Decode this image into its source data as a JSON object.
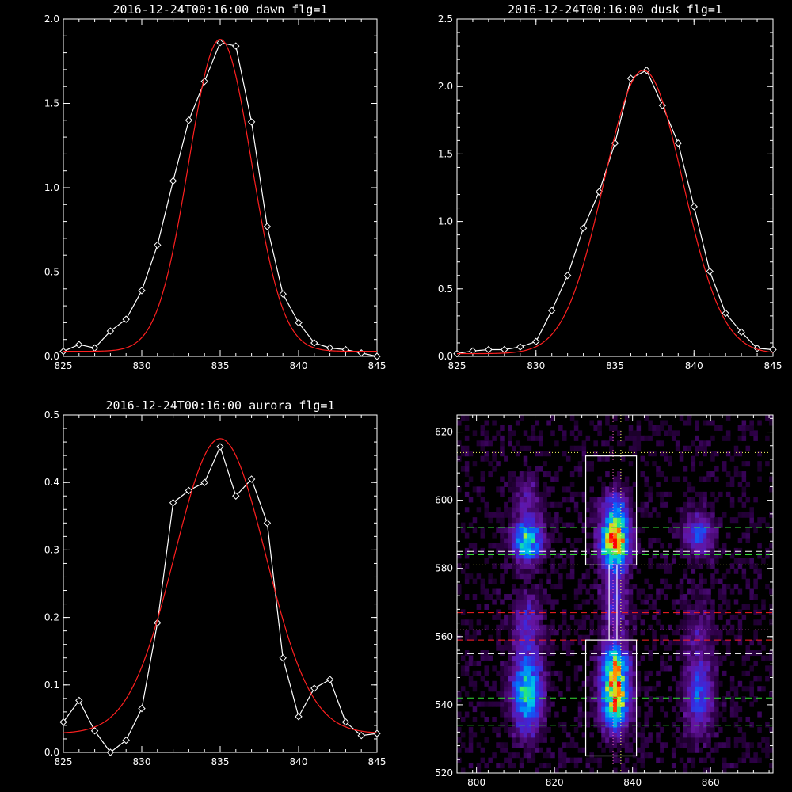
{
  "chart_data": [
    {
      "type": "line",
      "title": "2016-12-24T00:16:00 dawn flg=1",
      "xlim": [
        825,
        845
      ],
      "ylim": [
        0,
        2.0
      ],
      "xticks": [
        "825",
        "830",
        "835",
        "840",
        "845"
      ],
      "xtick_values": [
        825,
        830,
        835,
        840,
        845
      ],
      "yticks": [
        "0.0",
        "0.5",
        "1.0",
        "1.5",
        "2.0"
      ],
      "ytick_values": [
        0,
        0.5,
        1.0,
        1.5,
        2.0
      ],
      "series": [
        {
          "color": "#ffffff",
          "marker": "diamond",
          "x": [
            825,
            826,
            827,
            828,
            829,
            830,
            831,
            832,
            833,
            834,
            835,
            836,
            837,
            838,
            839,
            840,
            841,
            842,
            843,
            844,
            845
          ],
          "y": [
            0.03,
            0.07,
            0.05,
            0.15,
            0.22,
            0.39,
            0.66,
            1.04,
            1.4,
            1.63,
            1.86,
            1.84,
            1.39,
            0.77,
            0.37,
            0.2,
            0.08,
            0.05,
            0.04,
            0.02,
            0.0
          ]
        },
        {
          "color": "#ff2020",
          "marker": "none",
          "model": "gaussian",
          "peak": 1.85,
          "center": 835.0,
          "sigma": 2.0,
          "offset": 0.03
        }
      ]
    },
    {
      "type": "line",
      "title": "2016-12-24T00:16:00 dusk flg=1",
      "xlim": [
        825,
        845
      ],
      "ylim": [
        0,
        2.5
      ],
      "xticks": [
        "825",
        "830",
        "835",
        "840",
        "845"
      ],
      "xtick_values": [
        825,
        830,
        835,
        840,
        845
      ],
      "yticks": [
        "0.0",
        "0.5",
        "1.0",
        "1.5",
        "2.0",
        "2.5"
      ],
      "ytick_values": [
        0,
        0.5,
        1.0,
        1.5,
        2.0,
        2.5
      ],
      "series": [
        {
          "color": "#ffffff",
          "marker": "diamond",
          "x": [
            825,
            826,
            827,
            828,
            829,
            830,
            831,
            832,
            833,
            834,
            835,
            836,
            837,
            838,
            839,
            840,
            841,
            842,
            843,
            844,
            845
          ],
          "y": [
            0.02,
            0.04,
            0.05,
            0.05,
            0.07,
            0.11,
            0.34,
            0.6,
            0.95,
            1.22,
            1.58,
            2.06,
            2.12,
            1.86,
            1.58,
            1.11,
            0.63,
            0.32,
            0.18,
            0.06,
            0.05
          ]
        },
        {
          "color": "#ff2020",
          "marker": "none",
          "model": "gaussian",
          "peak": 2.1,
          "center": 836.8,
          "sigma": 2.5,
          "offset": 0.02
        }
      ]
    },
    {
      "type": "line",
      "title": "2016-12-24T00:16:00 aurora flg=1",
      "xlim": [
        825,
        845
      ],
      "ylim": [
        0,
        0.5
      ],
      "xticks": [
        "825",
        "830",
        "835",
        "840",
        "845"
      ],
      "xtick_values": [
        825,
        830,
        835,
        840,
        845
      ],
      "yticks": [
        "0.0",
        "0.1",
        "0.2",
        "0.3",
        "0.4",
        "0.5"
      ],
      "ytick_values": [
        0,
        0.1,
        0.2,
        0.3,
        0.4,
        0.5
      ],
      "series": [
        {
          "color": "#ffffff",
          "marker": "diamond",
          "x": [
            825,
            826,
            827,
            828,
            829,
            830,
            831,
            832,
            833,
            834,
            835,
            836,
            837,
            838,
            839,
            840,
            841,
            842,
            843,
            844,
            845
          ],
          "y": [
            0.045,
            0.077,
            0.032,
            0.0,
            0.018,
            0.065,
            0.192,
            0.37,
            0.388,
            0.4,
            0.453,
            0.38,
            0.405,
            0.34,
            0.14,
            0.053,
            0.095,
            0.108,
            0.045,
            0.025,
            0.028
          ]
        },
        {
          "color": "#ff2020",
          "marker": "none",
          "model": "gaussian",
          "peak": 0.437,
          "center": 835.0,
          "sigma": 2.9,
          "offset": 0.028
        }
      ]
    },
    {
      "type": "heatmap",
      "title": "",
      "xlim": [
        795,
        876
      ],
      "ylim": [
        520,
        625
      ],
      "xticks": [
        "800",
        "820",
        "840",
        "860"
      ],
      "xtick_values": [
        800,
        820,
        840,
        860
      ],
      "yticks": [
        "520",
        "540",
        "560",
        "580",
        "600",
        "620"
      ],
      "ytick_values": [
        520,
        540,
        560,
        580,
        600,
        620
      ],
      "boxes": [
        {
          "x": [
            828,
            841
          ],
          "y": [
            581,
            613
          ],
          "color": "#ffffff"
        },
        {
          "x": [
            828,
            841
          ],
          "y": [
            525,
            559
          ],
          "color": "#ffffff"
        },
        {
          "x": [
            834,
            836
          ],
          "y": [
            559,
            581
          ],
          "color": "#ffffff"
        }
      ],
      "hlines": [
        {
          "y": 614,
          "color": "#ffff66",
          "style": "dotted"
        },
        {
          "y": 592,
          "color": "#33dd33",
          "style": "dashed"
        },
        {
          "y": 585,
          "color": "#ffffff",
          "style": "dashed"
        },
        {
          "y": 584,
          "color": "#33dd33",
          "style": "dashed"
        },
        {
          "y": 581,
          "color": "#ffff66",
          "style": "dotted"
        },
        {
          "y": 567,
          "color": "#ff2020",
          "style": "dashed"
        },
        {
          "y": 562,
          "color": "#ff66cc",
          "style": "dotted"
        },
        {
          "y": 559,
          "color": "#ff2020",
          "style": "dashed"
        },
        {
          "y": 555,
          "color": "#ffffff",
          "style": "dashed"
        },
        {
          "y": 542,
          "color": "#33dd33",
          "style": "dashed"
        },
        {
          "y": 534,
          "color": "#33dd33",
          "style": "dashed"
        },
        {
          "y": 525,
          "color": "#ffff66",
          "style": "dotted"
        }
      ],
      "vlines": [
        {
          "x": 835,
          "color": "#ff66cc",
          "style": "dotted"
        },
        {
          "x": 837,
          "color": "#ffff66",
          "style": "dotted"
        }
      ]
    }
  ]
}
